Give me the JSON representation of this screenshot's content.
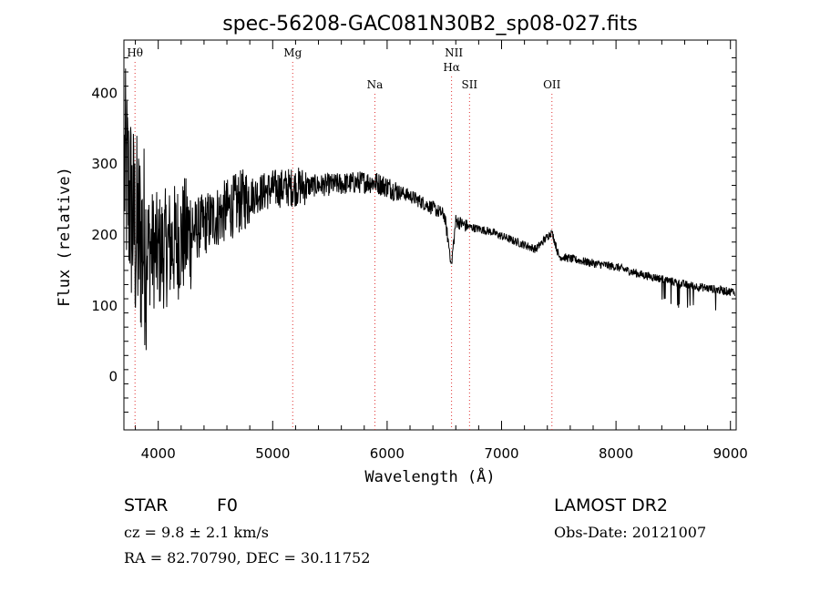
{
  "chart_data": {
    "type": "line",
    "title": "spec-56208-GAC081N30B2_sp08-027.fits",
    "xlabel": "Wavelength (Å)",
    "ylabel": "Flux (relative)",
    "xlim": [
      3700,
      9050
    ],
    "ylim": [
      -75,
      475
    ],
    "xticks": [
      4000,
      5000,
      6000,
      7000,
      8000,
      9000
    ],
    "yticks": [
      0,
      100,
      200,
      300,
      400
    ],
    "line_markers": [
      {
        "label": "Hθ",
        "x": 3797,
        "row": 0
      },
      {
        "label": "Mg",
        "x": 5175,
        "row": 0
      },
      {
        "label": "Na",
        "x": 5893,
        "row": 2
      },
      {
        "label": "NII",
        "x": 6583,
        "row": 0
      },
      {
        "label": "Hα",
        "x": 6563,
        "row": 1
      },
      {
        "label": "SII",
        "x": 6720,
        "row": 2
      },
      {
        "label": "OII",
        "x": 7440,
        "row": 2
      }
    ],
    "series": [
      {
        "color": "#000000",
        "points": [
          [
            3700,
            300
          ],
          [
            3750,
            250
          ],
          [
            3800,
            200
          ],
          [
            3900,
            185
          ],
          [
            4000,
            175
          ],
          [
            4200,
            195
          ],
          [
            4400,
            215
          ],
          [
            4600,
            235
          ],
          [
            4800,
            255
          ],
          [
            5000,
            265
          ],
          [
            5200,
            268
          ],
          [
            5400,
            270
          ],
          [
            5600,
            272
          ],
          [
            5800,
            275
          ],
          [
            5900,
            274
          ],
          [
            6000,
            268
          ],
          [
            6200,
            255
          ],
          [
            6400,
            238
          ],
          [
            6500,
            228
          ],
          [
            6563,
            160
          ],
          [
            6600,
            220
          ],
          [
            6700,
            212
          ],
          [
            6900,
            205
          ],
          [
            7100,
            192
          ],
          [
            7300,
            180
          ],
          [
            7440,
            205
          ],
          [
            7500,
            170
          ],
          [
            7800,
            160
          ],
          [
            8000,
            155
          ],
          [
            8200,
            145
          ],
          [
            8400,
            138
          ],
          [
            8600,
            130
          ],
          [
            8800,
            125
          ],
          [
            9000,
            120
          ]
        ]
      }
    ]
  },
  "info": {
    "object_type": "STAR",
    "subclass": "F0",
    "cz": "cz = 9.8 ± 2.1 km/s",
    "radec": "RA =  82.70790, DEC =  30.11752",
    "survey": "LAMOST DR2",
    "obs_date": "Obs-Date: 20121007"
  }
}
